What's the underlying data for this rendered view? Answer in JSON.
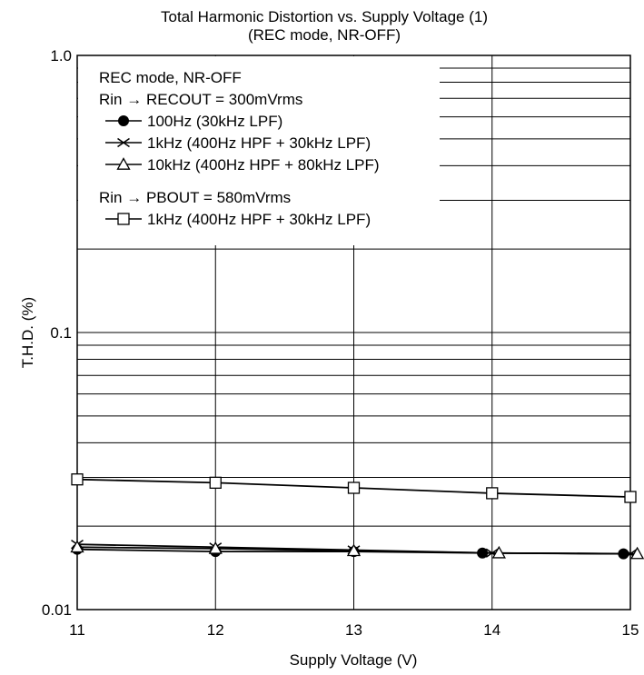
{
  "chart_data": {
    "type": "line",
    "title": "Total Harmonic Distortion vs. Supply Voltage (1)",
    "subtitle": "(REC mode, NR-OFF)",
    "xlabel": "Supply Voltage  (V)",
    "ylabel": "T.H.D.  (%)",
    "xlim": [
      11,
      15
    ],
    "ylim": [
      0.01,
      1.0
    ],
    "y_scale": "log",
    "grid": true,
    "x_ticks": [
      11,
      12,
      13,
      14,
      15
    ],
    "y_tick_labels": [
      "1.0",
      "0.1",
      "0.01"
    ],
    "x": [
      11,
      12,
      13,
      14,
      15
    ],
    "legend": {
      "placement": "top-left",
      "title": "REC mode, NR-OFF",
      "group1_label": "Rin → RECOUT = 300mVrms",
      "group2_label": "Rin → PBOUT = 580mVrms"
    },
    "series": [
      {
        "name": "100Hz (30kHz LPF)",
        "marker": "filled-circle",
        "x": [
          11,
          12,
          13,
          13.93,
          14.95
        ],
        "values": [
          0.0165,
          0.0162,
          0.0162,
          0.016,
          0.0159
        ]
      },
      {
        "name": "1kHz (400Hz HPF + 30kHz LPF)",
        "marker": "cross",
        "x": [
          11,
          12,
          13,
          14,
          15
        ],
        "values": [
          0.0172,
          0.0168,
          0.0164,
          0.016,
          0.0159
        ]
      },
      {
        "name": "10kHz (400Hz HPF + 80kHz LPF)",
        "marker": "open-triangle",
        "x": [
          11,
          12,
          13,
          14.05,
          15.05
        ],
        "values": [
          0.0168,
          0.0166,
          0.0163,
          0.016,
          0.0159
        ]
      },
      {
        "name": "1kHz (400Hz HPF + 30kHz LPF)",
        "marker": "open-square",
        "x": [
          11,
          12,
          13,
          14,
          15
        ],
        "values": [
          0.0295,
          0.0287,
          0.0275,
          0.0263,
          0.0255
        ]
      }
    ]
  }
}
